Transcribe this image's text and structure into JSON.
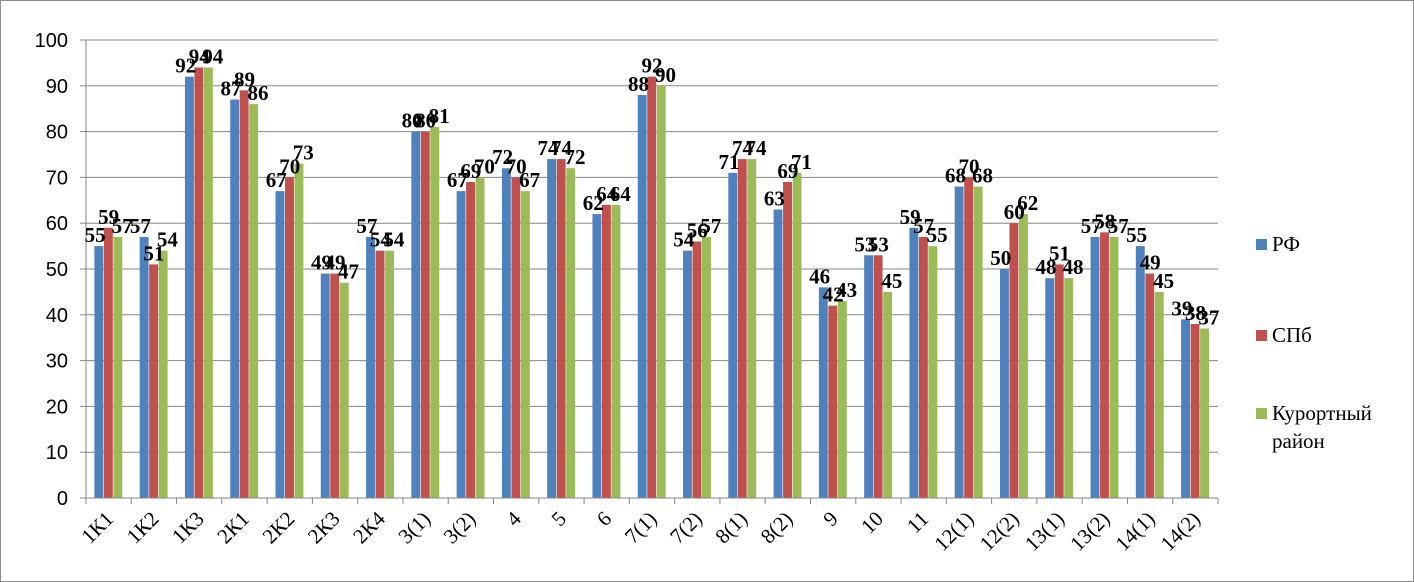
{
  "chart_data": {
    "type": "bar",
    "categories": [
      "1К1",
      "1К2",
      "1К3",
      "2К1",
      "2К2",
      "2К3",
      "2К4",
      "3(1)",
      "3(2)",
      "4",
      "5",
      "6",
      "7(1)",
      "7(2)",
      "8(1)",
      "8(2)",
      "9",
      "10",
      "11",
      "12(1)",
      "12(2)",
      "13(1)",
      "13(2)",
      "14(1)",
      "14(2)"
    ],
    "series": [
      {
        "name": "РФ",
        "color": "#4f81bd",
        "values": [
          55,
          57,
          92,
          87,
          67,
          49,
          57,
          80,
          67,
          72,
          74,
          62,
          88,
          54,
          71,
          63,
          46,
          53,
          59,
          68,
          50,
          48,
          57,
          55,
          39
        ]
      },
      {
        "name": "СПб",
        "color": "#c0504d",
        "values": [
          59,
          51,
          94,
          89,
          70,
          49,
          54,
          80,
          69,
          70,
          74,
          64,
          92,
          56,
          74,
          69,
          42,
          53,
          57,
          70,
          60,
          51,
          58,
          49,
          38
        ]
      },
      {
        "name": "Курортный район",
        "color": "#9bbb59",
        "values": [
          57,
          54,
          94,
          86,
          73,
          47,
          54,
          81,
          70,
          67,
          72,
          64,
          90,
          57,
          74,
          71,
          43,
          45,
          55,
          68,
          62,
          48,
          57,
          45,
          37
        ]
      }
    ],
    "ylim": [
      0,
      100
    ],
    "yticks": [
      0,
      10,
      20,
      30,
      40,
      50,
      60,
      70,
      80,
      90,
      100
    ],
    "grid": true,
    "legend": "right",
    "title": "",
    "xlabel": "",
    "ylabel": ""
  }
}
